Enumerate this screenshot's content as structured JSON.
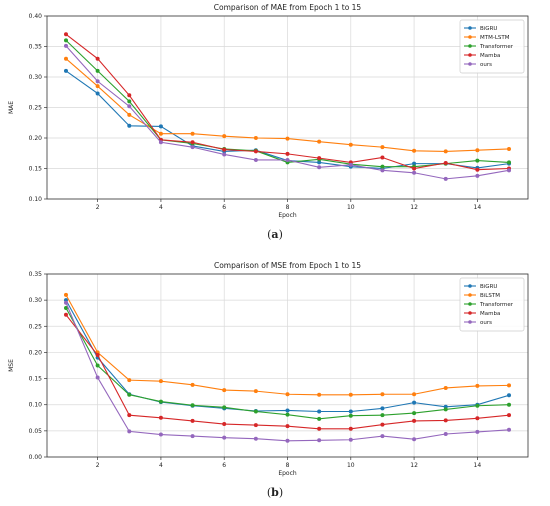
{
  "chart_data": [
    {
      "type": "line",
      "title": "Comparison of MAE from Epoch 1 to 15",
      "xlabel": "Epoch",
      "ylabel": "MAE",
      "xlim": [
        0.4,
        15.6
      ],
      "ylim": [
        0.1,
        0.4
      ],
      "xticks": [
        2,
        4,
        6,
        8,
        10,
        12,
        14
      ],
      "xtick_labels": [
        "2",
        "4",
        "6",
        "8",
        "10",
        "12",
        "14"
      ],
      "yticks": [
        0.1,
        0.15,
        0.2,
        0.25,
        0.3,
        0.35,
        0.4
      ],
      "ytick_labels": [
        "0.10",
        "0.15",
        "0.20",
        "0.25",
        "0.30",
        "0.35",
        "0.40"
      ],
      "grid": true,
      "legend_position": "top-right",
      "x": [
        1,
        2,
        3,
        4,
        5,
        6,
        7,
        8,
        9,
        10,
        11,
        12,
        13,
        14,
        15
      ],
      "series": [
        {
          "name": "BiGRU",
          "color": "#1f77b4",
          "values": [
            0.31,
            0.273,
            0.22,
            0.219,
            0.187,
            0.178,
            0.18,
            0.163,
            0.16,
            0.153,
            0.15,
            0.158,
            0.158,
            0.151,
            0.158
          ]
        },
        {
          "name": "MTM-LSTM",
          "color": "#ff7f0e",
          "values": [
            0.33,
            0.285,
            0.238,
            0.207,
            0.207,
            0.203,
            0.2,
            0.199,
            0.194,
            0.189,
            0.185,
            0.179,
            0.178,
            0.18,
            0.182
          ]
        },
        {
          "name": "Transformer",
          "color": "#2ca02c",
          "values": [
            0.36,
            0.31,
            0.26,
            0.197,
            0.191,
            0.182,
            0.179,
            0.16,
            0.165,
            0.157,
            0.153,
            0.153,
            0.158,
            0.163,
            0.16
          ]
        },
        {
          "name": "Mamba",
          "color": "#d62728",
          "values": [
            0.37,
            0.33,
            0.27,
            0.197,
            0.193,
            0.181,
            0.178,
            0.174,
            0.167,
            0.16,
            0.168,
            0.15,
            0.159,
            0.148,
            0.15
          ]
        },
        {
          "name": "ours",
          "color": "#9467bd",
          "values": [
            0.351,
            0.293,
            0.252,
            0.193,
            0.185,
            0.173,
            0.164,
            0.164,
            0.152,
            0.156,
            0.147,
            0.143,
            0.133,
            0.138,
            0.147
          ]
        }
      ]
    },
    {
      "type": "line",
      "title": "Comparison of MSE from Epoch 1 to 15",
      "xlabel": "Epoch",
      "ylabel": "MSE",
      "xlim": [
        0.4,
        15.6
      ],
      "ylim": [
        0.0,
        0.35
      ],
      "xticks": [
        2,
        4,
        6,
        8,
        10,
        12,
        14
      ],
      "xtick_labels": [
        "2",
        "4",
        "6",
        "8",
        "10",
        "12",
        "14"
      ],
      "yticks": [
        0.0,
        0.05,
        0.1,
        0.15,
        0.2,
        0.25,
        0.3,
        0.35
      ],
      "ytick_labels": [
        "0.00",
        "0.05",
        "0.10",
        "0.15",
        "0.20",
        "0.25",
        "0.30",
        "0.35"
      ],
      "grid": true,
      "legend_position": "top-right",
      "x": [
        1,
        2,
        3,
        4,
        5,
        6,
        7,
        8,
        9,
        10,
        11,
        12,
        13,
        14,
        15
      ],
      "series": [
        {
          "name": "BiGRU",
          "color": "#1f77b4",
          "values": [
            0.3,
            0.19,
            0.12,
            0.105,
            0.098,
            0.093,
            0.088,
            0.089,
            0.087,
            0.087,
            0.093,
            0.104,
            0.096,
            0.1,
            0.118
          ]
        },
        {
          "name": "BiLSTM",
          "color": "#ff7f0e",
          "values": [
            0.31,
            0.2,
            0.147,
            0.145,
            0.138,
            0.128,
            0.126,
            0.12,
            0.119,
            0.119,
            0.12,
            0.12,
            0.132,
            0.136,
            0.137
          ]
        },
        {
          "name": "Transformer",
          "color": "#2ca02c",
          "values": [
            0.285,
            0.175,
            0.119,
            0.106,
            0.099,
            0.095,
            0.087,
            0.081,
            0.073,
            0.079,
            0.08,
            0.084,
            0.091,
            0.098,
            0.1
          ]
        },
        {
          "name": "Mamba",
          "color": "#d62728",
          "values": [
            0.272,
            0.195,
            0.08,
            0.075,
            0.069,
            0.063,
            0.061,
            0.059,
            0.054,
            0.054,
            0.062,
            0.069,
            0.07,
            0.074,
            0.08
          ]
        },
        {
          "name": "ours",
          "color": "#9467bd",
          "values": [
            0.295,
            0.152,
            0.049,
            0.043,
            0.04,
            0.037,
            0.035,
            0.031,
            0.032,
            0.033,
            0.04,
            0.034,
            0.044,
            0.048,
            0.052
          ]
        }
      ]
    }
  ],
  "captions": {
    "a": {
      "prefix": "(",
      "letter": "a",
      "suffix": ")"
    },
    "b": {
      "prefix": "(",
      "letter": "b",
      "suffix": ")"
    }
  }
}
